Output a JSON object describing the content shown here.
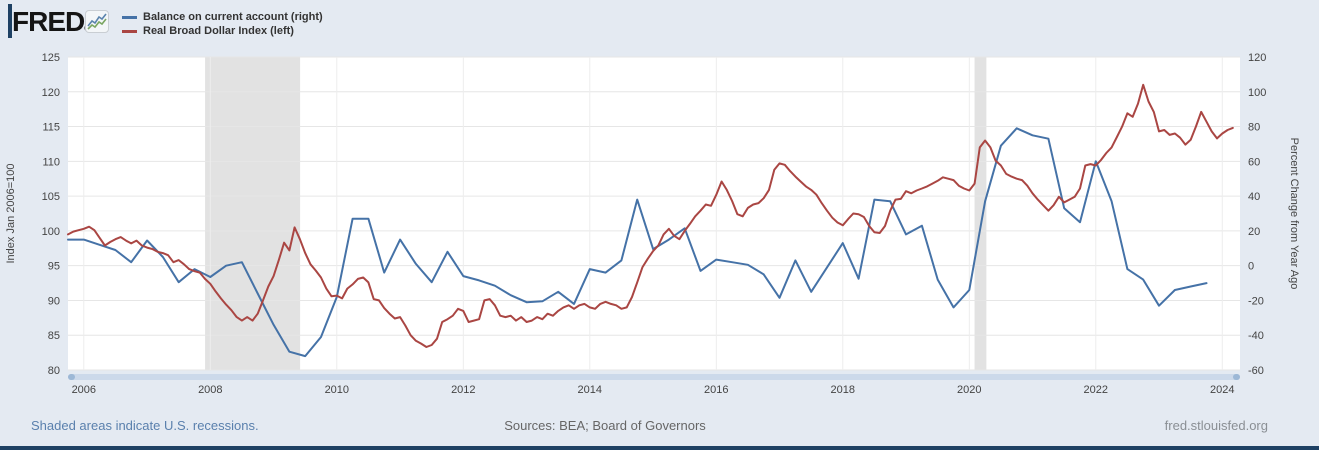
{
  "header": {
    "logo_text": "FRED",
    "logo_reg_mark": "®",
    "legend": [
      {
        "label": "Balance on current account (right)",
        "color": "#4572a7"
      },
      {
        "label": "Real Broad Dollar Index (left)",
        "color": "#aa4643"
      }
    ]
  },
  "footer": {
    "recession_note": "Shaded areas indicate U.S. recessions.",
    "sources": "Sources: BEA; Board of Governors",
    "site": "fred.stlouisfed.org"
  },
  "colors": {
    "page_background": "#e4eaf2",
    "plot_background": "#ffffff",
    "grid_horizontal": "#e6e6e6",
    "grid_vertical": "#ededed",
    "recession_band": "#e2e2e2",
    "tick_text": "#444444",
    "series_blue": "#4572a7",
    "series_red": "#aa4643",
    "edge_bar": "#1e4164"
  },
  "chart_data": {
    "type": "line",
    "title": "",
    "x_range": [
      2005.75,
      2024.28
    ],
    "x_ticks": [
      2006,
      2008,
      2010,
      2012,
      2014,
      2016,
      2018,
      2020,
      2022,
      2024
    ],
    "grid": true,
    "legend_position": "top-left",
    "left_axis": {
      "title": "Index Jan 2006=100",
      "min": 80,
      "max": 125,
      "ticks": [
        80,
        85,
        90,
        95,
        100,
        105,
        110,
        115,
        120,
        125
      ]
    },
    "right_axis": {
      "title": "Percent Change from Year Ago",
      "min": -60,
      "max": 120,
      "ticks": [
        -60,
        -40,
        -20,
        0,
        20,
        40,
        60,
        80,
        100,
        120
      ]
    },
    "recession_bands": [
      [
        2007.917,
        2009.42
      ],
      [
        2020.083,
        2020.27
      ]
    ],
    "series": [
      {
        "name": "Balance on current account",
        "axis": "right",
        "color": "#4572a7",
        "frequency": "quarterly",
        "x_start": 2005.75,
        "x_step": 0.25,
        "values": [
          15,
          15,
          12,
          9,
          2,
          14.5,
          5,
          -9.5,
          -2,
          -6.5,
          0,
          2,
          -16,
          -34,
          -49.5,
          -52,
          -41,
          -18,
          27,
          27,
          -4,
          15,
          1,
          -9.5,
          8,
          -6,
          -8.5,
          -11.5,
          -17,
          -21,
          -20.5,
          -15,
          -22,
          -2,
          -4,
          3,
          38,
          9.5,
          15,
          21.5,
          -3,
          3.5,
          2,
          0.5,
          -5,
          -18.5,
          3,
          -15,
          -1,
          13,
          -7.5,
          38,
          37,
          18,
          23,
          -8,
          -24,
          -14,
          37,
          69,
          79,
          75,
          73,
          33,
          25,
          60,
          37,
          -2,
          -8,
          -23,
          -14,
          -12,
          -10
        ]
      },
      {
        "name": "Real Broad Dollar Index",
        "axis": "left",
        "color": "#aa4643",
        "frequency": "monthly",
        "x_start": 2005.75,
        "x_step": 0.0833333,
        "values": [
          99.5,
          99.9,
          100.1,
          100.3,
          100.6,
          100.1,
          99.0,
          97.9,
          98.4,
          98.8,
          99.1,
          98.6,
          98.2,
          98.6,
          97.9,
          97.6,
          97.4,
          97.0,
          96.8,
          96.5,
          95.5,
          95.8,
          95.2,
          94.5,
          94.2,
          94.0,
          93.1,
          92.4,
          91.3,
          90.3,
          89.4,
          88.6,
          87.6,
          87.1,
          87.6,
          87.1,
          88.1,
          90.0,
          92.0,
          93.5,
          95.8,
          98.3,
          97.2,
          100.5,
          98.8,
          96.8,
          95.2,
          94.3,
          93.3,
          91.7,
          90.6,
          90.7,
          90.3,
          91.7,
          92.3,
          93.1,
          93.3,
          92.6,
          90.2,
          90.0,
          88.9,
          88.1,
          87.4,
          87.6,
          86.4,
          85.0,
          84.2,
          83.8,
          83.3,
          83.6,
          84.5,
          86.9,
          87.3,
          87.8,
          88.8,
          88.5,
          86.9,
          87.1,
          87.3,
          90.0,
          90.2,
          89.3,
          87.8,
          87.6,
          87.8,
          87.1,
          87.6,
          86.9,
          87.1,
          87.6,
          87.3,
          88.1,
          87.8,
          88.5,
          89.0,
          89.3,
          88.8,
          89.3,
          89.5,
          89.0,
          88.8,
          89.5,
          89.8,
          89.5,
          89.3,
          88.8,
          89.0,
          90.5,
          92.6,
          94.8,
          96.0,
          97.1,
          97.9,
          99.5,
          100.3,
          99.3,
          98.8,
          100.0,
          101.0,
          102.1,
          102.9,
          103.8,
          103.6,
          105.2,
          107.1,
          105.9,
          104.3,
          102.4,
          102.1,
          103.3,
          103.8,
          104.0,
          104.7,
          105.9,
          108.8,
          109.7,
          109.5,
          108.6,
          107.8,
          107.1,
          106.4,
          105.9,
          105.2,
          104.0,
          102.9,
          101.9,
          101.2,
          100.8,
          101.7,
          102.5,
          102.4,
          102.0,
          100.7,
          99.8,
          99.7,
          100.7,
          102.9,
          104.5,
          104.6,
          105.7,
          105.4,
          105.8,
          106.1,
          106.4,
          106.8,
          107.2,
          107.7,
          107.5,
          107.3,
          106.5,
          106.1,
          105.8,
          106.8,
          112.0,
          113.0,
          112.0,
          110.1,
          109.4,
          108.2,
          107.8,
          107.5,
          107.3,
          106.5,
          105.4,
          104.5,
          103.7,
          102.9,
          103.7,
          104.9,
          104.1,
          104.5,
          104.9,
          106.1,
          109.4,
          109.6,
          109.4,
          110.2,
          111.2,
          112.0,
          113.5,
          115.0,
          116.9,
          116.4,
          118.3,
          121.0,
          118.6,
          117.1,
          114.3,
          114.5,
          113.8,
          114.0,
          113.4,
          112.4,
          113.1,
          115.0,
          117.1,
          115.7,
          114.3,
          113.3,
          114.0,
          114.5,
          114.8
        ]
      }
    ]
  }
}
